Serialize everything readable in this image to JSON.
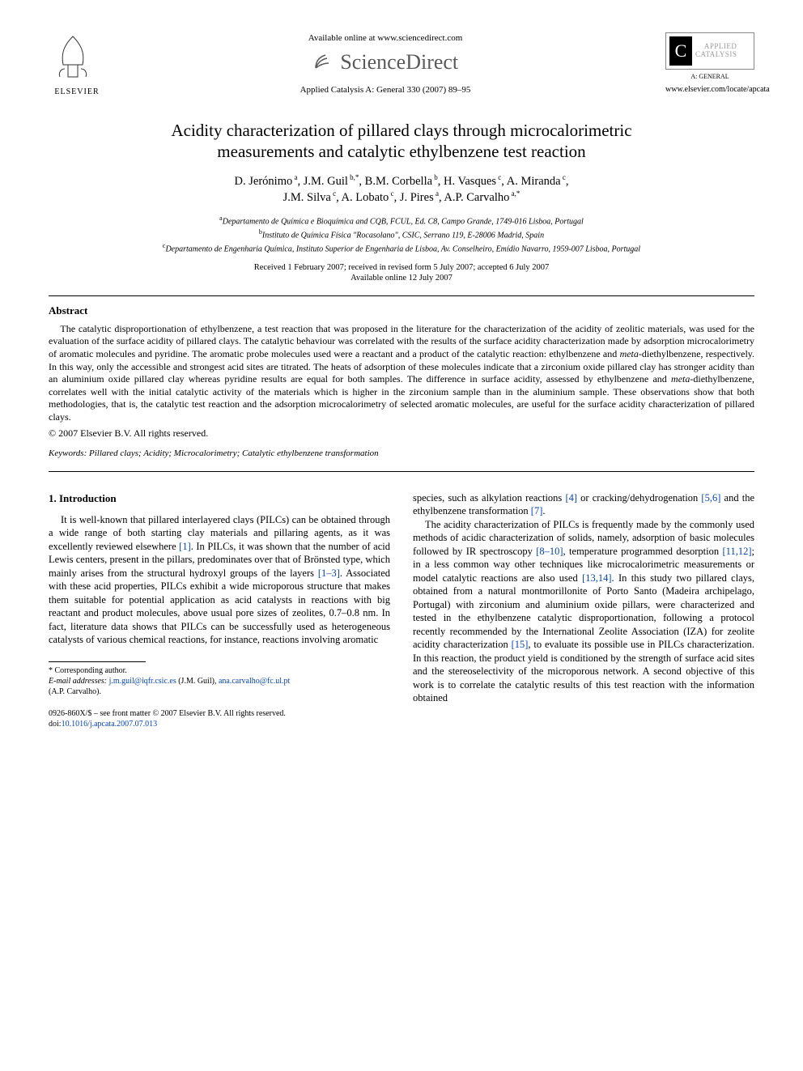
{
  "header": {
    "available_online": "Available online at www.sciencedirect.com",
    "sciencedirect": "ScienceDirect",
    "journal_ref": "Applied Catalysis A: General 330 (2007) 89–95",
    "elsevier": "ELSEVIER",
    "badge_word1": "APPLIED",
    "badge_word2": "CATALYSIS",
    "badge_sub": "A: GENERAL",
    "locate_url": "www.elsevier.com/locate/apcata"
  },
  "title_line1": "Acidity characterization of pillared clays through microcalorimetric",
  "title_line2": "measurements and catalytic ethylbenzene test reaction",
  "authors_html": "D. Jerónimo|a|, J.M. Guil|b,*|, B.M. Corbella|b|, H. Vasques|c|, A. Miranda|c|, J.M. Silva|c|, A. Lobato|c|, J. Pires|a|, A.P. Carvalho|a,*|",
  "authors": [
    {
      "name": "D. Jerónimo",
      "sup": "a"
    },
    {
      "name": "J.M. Guil",
      "sup": "b,*"
    },
    {
      "name": "B.M. Corbella",
      "sup": "b"
    },
    {
      "name": "H. Vasques",
      "sup": "c"
    },
    {
      "name": "A. Miranda",
      "sup": "c"
    },
    {
      "name": "J.M. Silva",
      "sup": "c"
    },
    {
      "name": "A. Lobato",
      "sup": "c"
    },
    {
      "name": "J. Pires",
      "sup": "a"
    },
    {
      "name": "A.P. Carvalho",
      "sup": "a,*"
    }
  ],
  "affiliations": {
    "a": "Departamento de Química e Bioquímica and CQB, FCUL, Ed. C8, Campo Grande, 1749-016 Lisboa, Portugal",
    "b": "Instituto de Química Física \"Rocasolano\", CSIC, Serrano 119, E-28006 Madrid, Spain",
    "c": "Departamento de Engenharia Química, Instituto Superior de Engenharia de Lisboa, Av. Conselheiro, Emídio Navarro, 1959-007 Lisboa, Portugal"
  },
  "dates": {
    "received": "Received 1 February 2007; received in revised form 5 July 2007; accepted 6 July 2007",
    "online": "Available online 12 July 2007"
  },
  "abstract": {
    "heading": "Abstract",
    "body_parts": [
      "The catalytic disproportionation of ethylbenzene, a test reaction that was proposed in the literature for the characterization of the acidity of zeolitic materials, was used for the evaluation of the surface acidity of pillared clays. The catalytic behaviour was correlated with the results of the surface acidity characterization made by adsorption microcalorimetry of aromatic molecules and pyridine. The aromatic probe molecules used were a reactant and a product of the catalytic reaction: ethylbenzene and ",
      "meta",
      "-diethylbenzene, respectively. In this way, only the accessible and strongest acid sites are titrated. The heats of adsorption of these molecules indicate that a zirconium oxide pillared clay has stronger acidity than an aluminium oxide pillared clay whereas pyridine results are equal for both samples. The difference in surface acidity, assessed by ethylbenzene and ",
      "meta",
      "-diethylbenzene, correlates well with the initial catalytic activity of the materials which is higher in the zirconium sample than in the aluminium sample. These observations show that both methodologies, that is, the catalytic test reaction and the adsorption microcalorimetry of selected aromatic molecules, are useful for the surface acidity characterization of pillared clays."
    ],
    "copyright": "© 2007 Elsevier B.V. All rights reserved."
  },
  "keywords": {
    "label": "Keywords:",
    "text": " Pillared clays; Acidity; Microcalorimetry; Catalytic ethylbenzene transformation"
  },
  "intro": {
    "heading": "1. Introduction",
    "col1_segments": [
      {
        "t": "text",
        "v": "It is well-known that pillared interlayered clays (PILCs) can be obtained through a wide range of both starting clay materials and pillaring agents, as it was excellently reviewed elsewhere "
      },
      {
        "t": "ref",
        "v": "[1]"
      },
      {
        "t": "text",
        "v": ". In PILCs, it was shown that the number of acid Lewis centers, present in the pillars, predominates over that of Brönsted type, which mainly arises from the structural hydroxyl groups of the layers "
      },
      {
        "t": "ref",
        "v": "[1–3]"
      },
      {
        "t": "text",
        "v": ". Associated with these acid properties, PILCs exhibit a wide microporous structure that makes them suitable for potential application as acid catalysts in reactions with big reactant and product molecules, above usual pore sizes of zeolites, 0.7–0.8 nm. In fact, literature data shows that PILCs can be successfully used as heterogeneous catalysts of various chemical reactions, for instance, reactions involving aromatic"
      }
    ],
    "col2_top_segments": [
      {
        "t": "text",
        "v": "species, such as alkylation reactions "
      },
      {
        "t": "ref",
        "v": "[4]"
      },
      {
        "t": "text",
        "v": " or cracking/dehydrogenation "
      },
      {
        "t": "ref",
        "v": "[5,6]"
      },
      {
        "t": "text",
        "v": " and the ethylbenzene transformation "
      },
      {
        "t": "ref",
        "v": "[7]"
      },
      {
        "t": "text",
        "v": "."
      }
    ],
    "col2_para2_segments": [
      {
        "t": "text",
        "v": "The acidity characterization of PILCs is frequently made by the commonly used methods of acidic characterization of solids, namely, adsorption of basic molecules followed by IR spectroscopy "
      },
      {
        "t": "ref",
        "v": "[8–10]"
      },
      {
        "t": "text",
        "v": ", temperature programmed desorption "
      },
      {
        "t": "ref",
        "v": "[11,12]"
      },
      {
        "t": "text",
        "v": "; in a less common way other techniques like microcalorimetric measurements or model catalytic reactions are also used "
      },
      {
        "t": "ref",
        "v": "[13,14]"
      },
      {
        "t": "text",
        "v": ". In this study two pillared clays, obtained from a natural montmorillonite of Porto Santo (Madeira archipelago, Portugal) with zirconium and aluminium oxide pillars, were characterized and tested in the ethylbenzene catalytic disproportionation, following a protocol recently recommended by the International Zeolite Association (IZA) for zeolite acidity characterization "
      },
      {
        "t": "ref",
        "v": "[15]"
      },
      {
        "t": "text",
        "v": ", to evaluate its possible use in PILCs characterization. In this reaction, the product yield is conditioned by the strength of surface acid sites and the stereoselectivity of the microporous network. A second objective of this work is to correlate the catalytic results of this test reaction with the information obtained"
      }
    ]
  },
  "footnote": {
    "corr": "* Corresponding author.",
    "email_label": "E-mail addresses:",
    "email1": "j.m.guil@iqfr.csic.es",
    "email1_who": " (J.M. Guil), ",
    "email2": "ana.carvalho@fc.ul.pt",
    "email2_who": "(A.P. Carvalho)."
  },
  "page_footer": {
    "line1": "0926-860X/$ – see front matter © 2007 Elsevier B.V. All rights reserved.",
    "doi_label": "doi:",
    "doi": "10.1016/j.apcata.2007.07.013"
  },
  "colors": {
    "link": "#0645ad",
    "text": "#000000",
    "background": "#ffffff",
    "sd_gray": "#5a5a5a"
  }
}
